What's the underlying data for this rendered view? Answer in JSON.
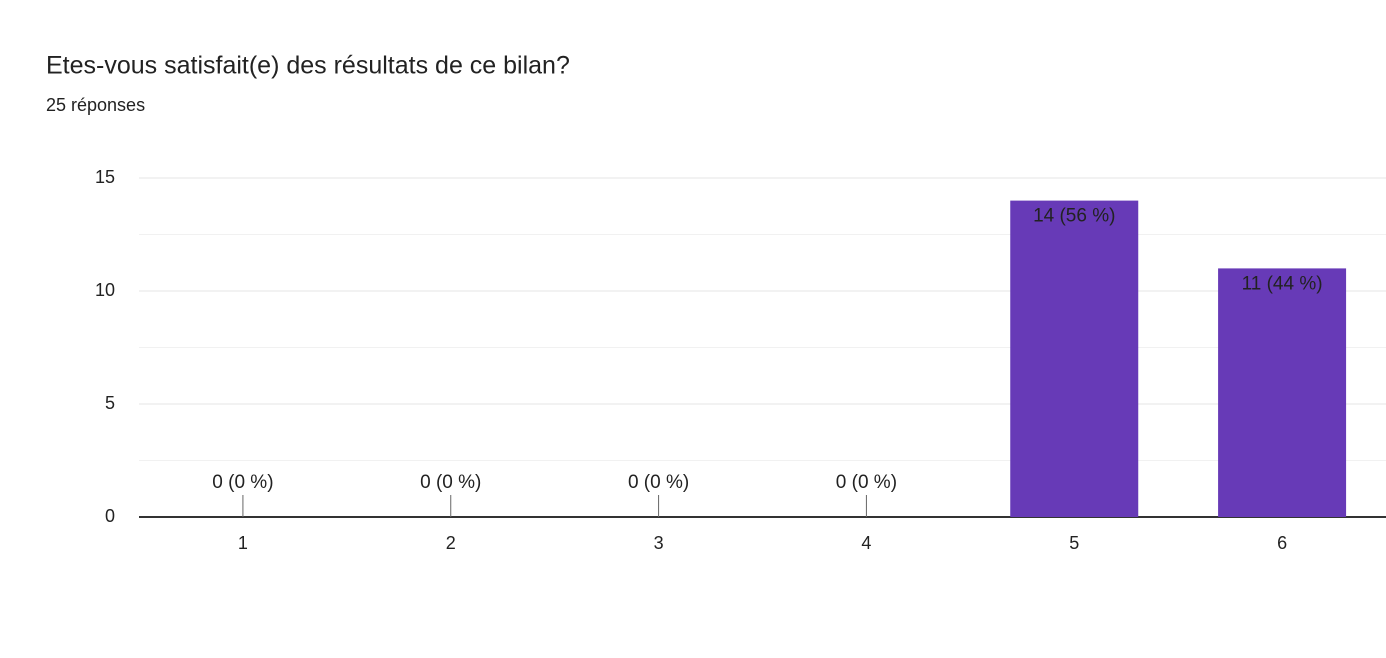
{
  "chart_data": {
    "type": "bar",
    "title": "Etes-vous satisfait(e) des résultats de ce bilan?",
    "subtitle": "25 réponses",
    "categories": [
      "1",
      "2",
      "3",
      "4",
      "5",
      "6"
    ],
    "values": [
      0,
      0,
      0,
      0,
      14,
      11
    ],
    "value_labels": [
      "0 (0 %)",
      "0 (0 %)",
      "0 (0 %)",
      "0 (0 %)",
      "14 (56 %)",
      "11 (44 %)"
    ],
    "color": "#673ab7",
    "ylim": [
      0,
      15
    ],
    "yticks": [
      0,
      5,
      10,
      15
    ],
    "minor_yticks": [
      2.5,
      7.5,
      12.5
    ],
    "grid": true
  }
}
